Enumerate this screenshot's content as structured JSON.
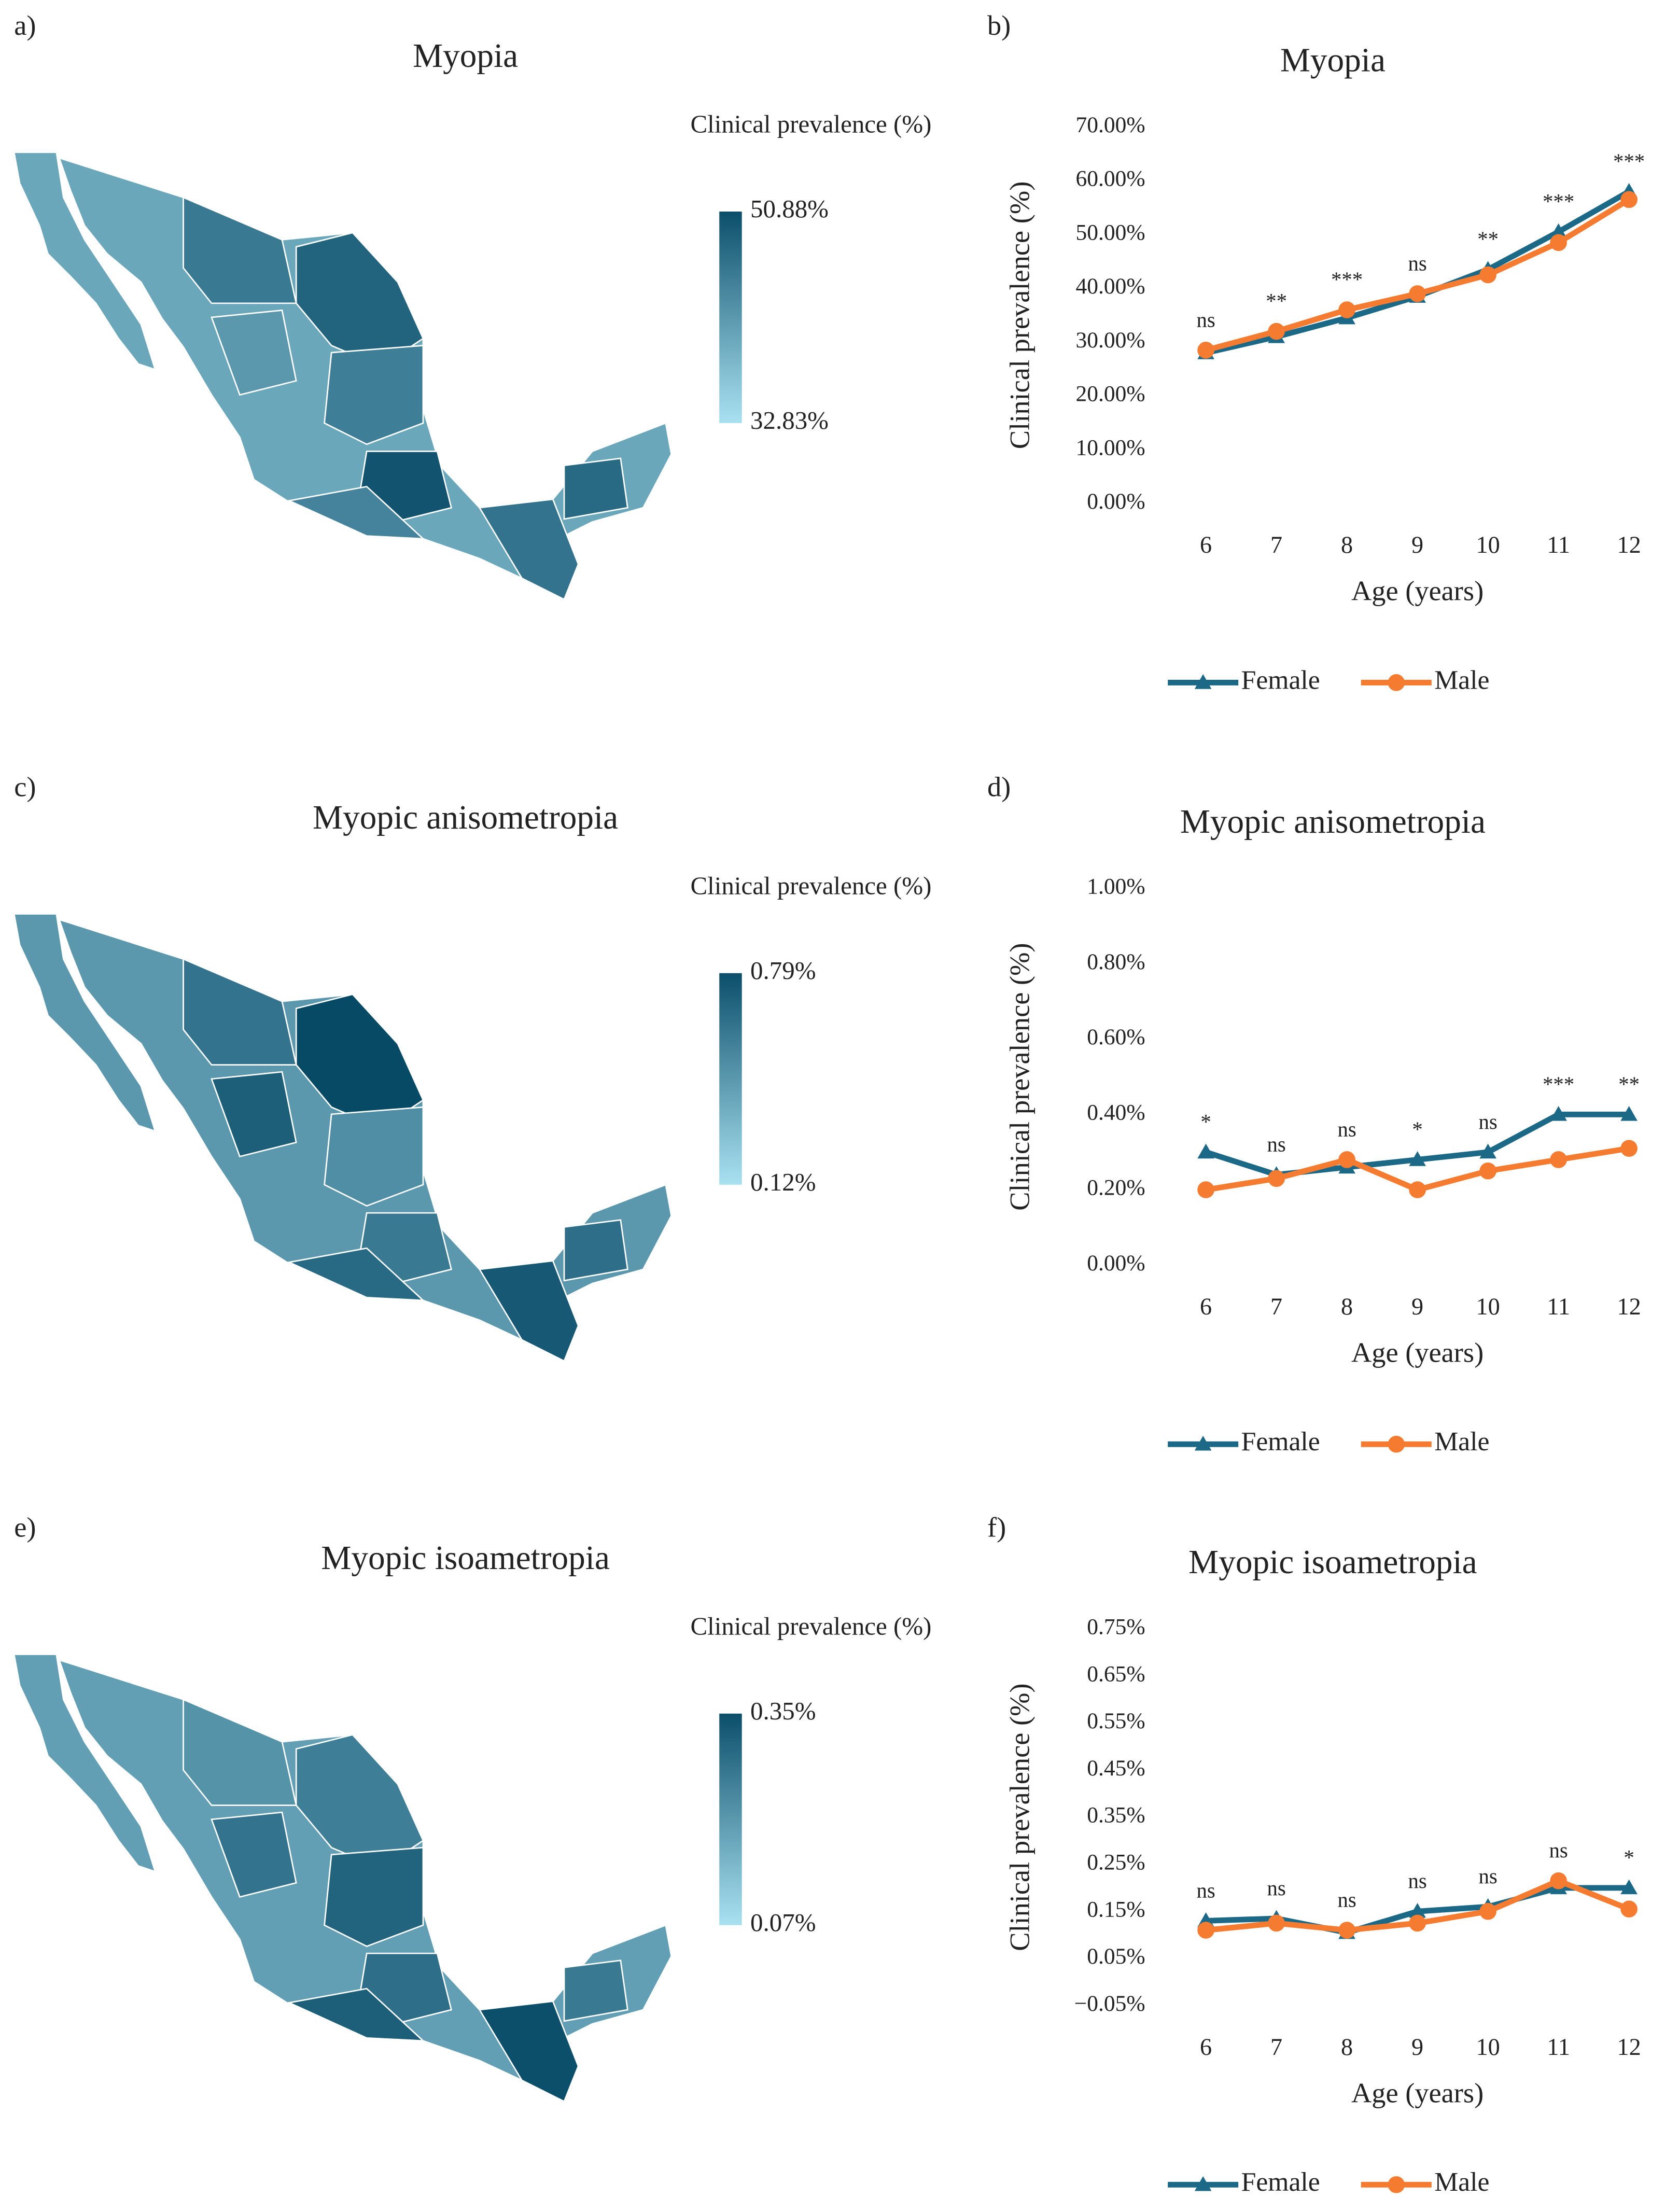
{
  "chart_data": [
    {
      "type": "map",
      "panel_label": "a)",
      "title": "Myopia",
      "legend_title": "Clinical prevalence (%)",
      "colors": [
        "#a9e1f1",
        "#0c4f6b"
      ],
      "clim": [
        32.83,
        50.88
      ],
      "cticks": [
        {
          "value": 50.88,
          "label": "50.88%"
        },
        {
          "value": 32.83,
          "label": "32.83%"
        }
      ]
    },
    {
      "type": "line",
      "panel_label": "b)",
      "title": "Myopia",
      "ylabel": "Clinical prevalence (%)",
      "xlabel": "Age (years)",
      "categories": [
        6,
        7,
        8,
        9,
        10,
        11,
        12
      ],
      "ylim": [
        0,
        70
      ],
      "yticks": [
        {
          "value": 0,
          "label": "0.00%"
        },
        {
          "value": 10,
          "label": "10.00%"
        },
        {
          "value": 20,
          "label": "20.00%"
        },
        {
          "value": 30,
          "label": "30.00%"
        },
        {
          "value": 40,
          "label": "40.00%"
        },
        {
          "value": 50,
          "label": "50.00%"
        },
        {
          "value": 60,
          "label": "60.00%"
        },
        {
          "value": 70,
          "label": "70.00%"
        }
      ],
      "annotations": [
        "ns",
        "**",
        "***",
        "ns",
        "**",
        "***",
        "***"
      ],
      "legend": "bottom",
      "series": [
        {
          "name": "Female",
          "color": "#1b6887",
          "marker": "triangle",
          "values": [
            28,
            31,
            34.5,
            38.5,
            43.5,
            50.5,
            58
          ]
        },
        {
          "name": "Male",
          "color": "#f47b2f",
          "marker": "circle",
          "values": [
            28.5,
            32,
            36,
            39,
            42.5,
            48.5,
            56.5
          ]
        }
      ]
    },
    {
      "type": "map",
      "panel_label": "c)",
      "title": "Myopic anisometropia",
      "legend_title": "Clinical prevalence (%)",
      "colors": [
        "#a9e1f1",
        "#0c4f6b"
      ],
      "clim": [
        0.12,
        0.79
      ],
      "cticks": [
        {
          "value": 0.79,
          "label": "0.79%"
        },
        {
          "value": 0.12,
          "label": "0.12%"
        }
      ]
    },
    {
      "type": "line",
      "panel_label": "d)",
      "title": "Myopic anisometropia",
      "ylabel": "Clinical prevalence (%)",
      "xlabel": "Age (years)",
      "categories": [
        6,
        7,
        8,
        9,
        10,
        11,
        12
      ],
      "ylim": [
        0,
        1
      ],
      "yticks": [
        {
          "value": 0,
          "label": "0.00%"
        },
        {
          "value": 0.2,
          "label": "0.20%"
        },
        {
          "value": 0.4,
          "label": "0.40%"
        },
        {
          "value": 0.6,
          "label": "0.60%"
        },
        {
          "value": 0.8,
          "label": "0.80%"
        },
        {
          "value": 1,
          "label": "1.00%"
        }
      ],
      "annotations": [
        "*",
        "ns",
        "ns",
        "*",
        "ns",
        "***",
        "**"
      ],
      "legend": "bottom",
      "series": [
        {
          "name": "Female",
          "color": "#1b6887",
          "marker": "triangle",
          "values": [
            0.3,
            0.24,
            0.26,
            0.28,
            0.3,
            0.4,
            0.4
          ]
        },
        {
          "name": "Male",
          "color": "#f47b2f",
          "marker": "circle",
          "values": [
            0.2,
            0.23,
            0.28,
            0.2,
            0.25,
            0.28,
            0.31
          ]
        }
      ]
    },
    {
      "type": "map",
      "panel_label": "e)",
      "title": "Myopic isoametropia",
      "legend_title": "Clinical prevalence (%)",
      "colors": [
        "#a9e1f1",
        "#0c4f6b"
      ],
      "clim": [
        0.07,
        0.35
      ],
      "cticks": [
        {
          "value": 0.35,
          "label": "0.35%"
        },
        {
          "value": 0.07,
          "label": "0.07%"
        }
      ]
    },
    {
      "type": "line",
      "panel_label": "f)",
      "title": "Myopic isoametropia",
      "ylabel": "Clinical prevalence (%)",
      "xlabel": "Age (years)",
      "categories": [
        6,
        7,
        8,
        9,
        10,
        11,
        12
      ],
      "ylim": [
        -0.05,
        0.75
      ],
      "yticks": [
        {
          "value": -0.05,
          "label": "−0.05%"
        },
        {
          "value": 0.05,
          "label": "0.05%"
        },
        {
          "value": 0.15,
          "label": "0.15%"
        },
        {
          "value": 0.25,
          "label": "0.25%"
        },
        {
          "value": 0.35,
          "label": "0.35%"
        },
        {
          "value": 0.45,
          "label": "0.45%"
        },
        {
          "value": 0.55,
          "label": "0.55%"
        },
        {
          "value": 0.65,
          "label": "0.65%"
        },
        {
          "value": 0.75,
          "label": "0.75%"
        }
      ],
      "annotations": [
        "ns",
        "ns",
        "ns",
        "ns",
        "ns",
        "ns",
        "*"
      ],
      "legend": "bottom",
      "series": [
        {
          "name": "Female",
          "color": "#1b6887",
          "marker": "triangle",
          "values": [
            0.13,
            0.135,
            0.105,
            0.15,
            0.16,
            0.2,
            0.2
          ]
        },
        {
          "name": "Male",
          "color": "#f47b2f",
          "marker": "circle",
          "values": [
            0.11,
            0.125,
            0.11,
            0.125,
            0.15,
            0.215,
            0.155
          ]
        }
      ]
    }
  ]
}
